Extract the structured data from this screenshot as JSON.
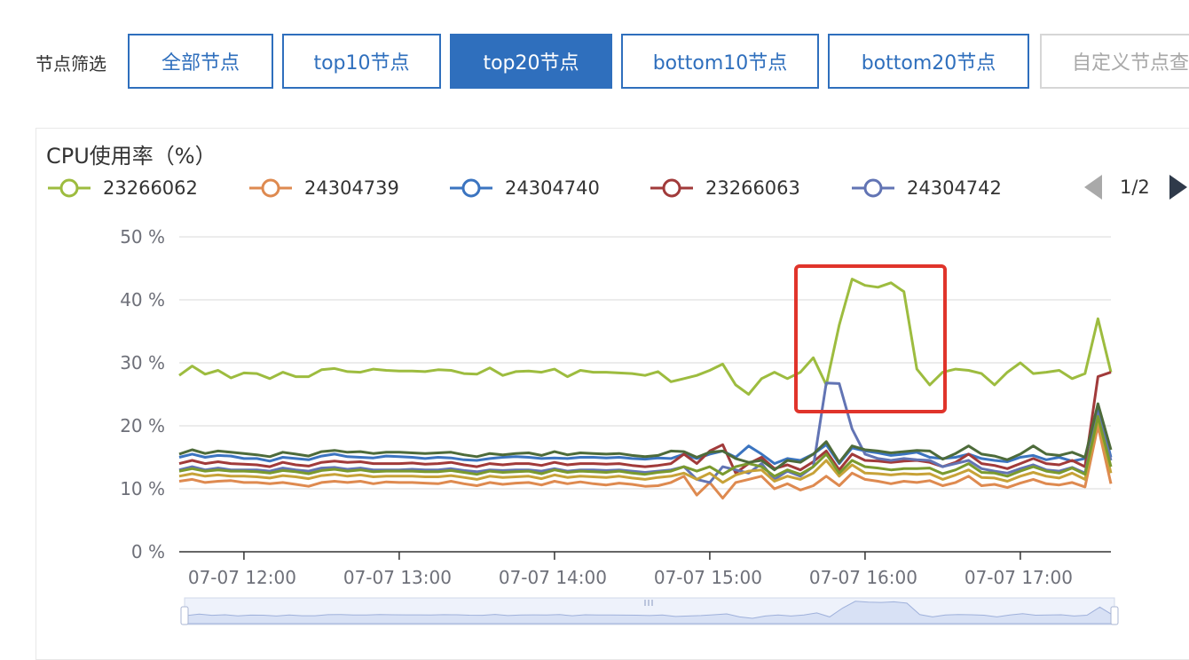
{
  "filter": {
    "label": "节点筛选",
    "buttons": [
      {
        "label": "全部节点",
        "active": false
      },
      {
        "label": "top10节点",
        "active": false
      },
      {
        "label": "top20节点",
        "active": true
      },
      {
        "label": "bottom10节点",
        "active": false
      },
      {
        "label": "bottom20节点",
        "active": false
      },
      {
        "label": "自定义节点查",
        "active": false,
        "disabled": true
      }
    ]
  },
  "pager": {
    "text": "1/2"
  },
  "colors": {
    "accent": "#2f6fbd",
    "highlight_box": "#e0342b",
    "grid": "#e6e6e6",
    "slider_fill": "#d8e1f5"
  },
  "chart_data": {
    "type": "line",
    "title": "CPU使用率（%）",
    "xlabel": "",
    "ylabel": "",
    "ylim": [
      0,
      50
    ],
    "yticks": [
      "0 %",
      "10 %",
      "20 %",
      "30 %",
      "40 %",
      "50 %"
    ],
    "xticks": [
      {
        "label": "07-07 12:00",
        "t": 12.0
      },
      {
        "label": "07-07 13:00",
        "t": 13.0
      },
      {
        "label": "07-07 14:00",
        "t": 14.0
      },
      {
        "label": "07-07 15:00",
        "t": 15.0
      },
      {
        "label": "07-07 16:00",
        "t": 16.0
      },
      {
        "label": "07-07 17:00",
        "t": 17.0
      }
    ],
    "x_start": "07-07 11:35",
    "x_end": "07-07 17:35",
    "x_step_minutes": 5,
    "legend": [
      {
        "name": "23266062",
        "color": "#9dbc3f"
      },
      {
        "name": "24304739",
        "color": "#de8a50"
      },
      {
        "name": "24304740",
        "color": "#3b74c0"
      },
      {
        "name": "23266063",
        "color": "#a13a3a"
      },
      {
        "name": "24304742",
        "color": "#6274b4"
      }
    ],
    "series": [
      {
        "name": "23266062",
        "color": "#9dbc3f",
        "values": [
          28,
          29.5,
          28.2,
          28.8,
          27.6,
          28.4,
          28.3,
          27.5,
          28.5,
          27.8,
          27.8,
          28.9,
          29.1,
          28.6,
          28.5,
          29,
          28.8,
          28.7,
          28.7,
          28.6,
          28.9,
          28.8,
          28.3,
          28.2,
          29.2,
          28,
          28.6,
          28.7,
          28.5,
          29,
          27.8,
          28.8,
          28.5,
          28.5,
          28.4,
          28.3,
          28,
          28.6,
          27,
          27.5,
          28,
          28.8,
          29.8,
          26.5,
          25,
          27.5,
          28.5,
          27.5,
          28.5,
          30.8,
          26.5,
          36,
          43.3,
          42.3,
          42,
          42.7,
          41.3,
          29,
          26.5,
          28.5,
          29,
          28.8,
          28.3,
          26.5,
          28.5,
          30,
          28.3,
          28.5,
          28.8,
          27.5,
          28.3,
          37,
          28.5
        ]
      },
      {
        "name": "24304739",
        "color": "#de8a50",
        "values": [
          11.2,
          11.5,
          11,
          11.2,
          11.3,
          11,
          11,
          10.8,
          11,
          10.7,
          10.4,
          11,
          11.2,
          11,
          11.2,
          10.8,
          11.1,
          11,
          11,
          10.9,
          10.8,
          11.2,
          10.8,
          10.5,
          11,
          10.7,
          10.9,
          11,
          10.6,
          11.2,
          10.8,
          11.1,
          10.8,
          10.6,
          10.9,
          10.7,
          10.4,
          10.5,
          11,
          12,
          9,
          11,
          8.5,
          11,
          11.5,
          12,
          10,
          10.8,
          9.8,
          10.5,
          12,
          10.5,
          12.5,
          11.5,
          11.2,
          10.8,
          11.2,
          11,
          11.3,
          10.5,
          11,
          12,
          10.5,
          10.7,
          10.2,
          10.9,
          11.5,
          10.8,
          10.6,
          11,
          10.3,
          20,
          10.8
        ]
      },
      {
        "name": "24304740",
        "color": "#3b74c0",
        "values": [
          15,
          15.5,
          15,
          15.3,
          15.2,
          14.8,
          14.8,
          14.4,
          15,
          14.8,
          14.6,
          15.2,
          15.5,
          15.1,
          15,
          14.9,
          15.2,
          15.1,
          15,
          14.8,
          15,
          14.9,
          14.6,
          14.5,
          14.8,
          15,
          15.1,
          15,
          14.8,
          14.9,
          14.8,
          15,
          15,
          14.9,
          15,
          14.8,
          14.7,
          14.9,
          14.8,
          15.5,
          14.8,
          15.5,
          16,
          15,
          16.8,
          15.5,
          14,
          14.8,
          14.5,
          15.5,
          17,
          14,
          16.5,
          16,
          15.7,
          15.3,
          15.5,
          15.8,
          15,
          14.8,
          15,
          15.5,
          14.8,
          14.5,
          14.3,
          15,
          15.3,
          14.6,
          15,
          14.4,
          14.8,
          23,
          15
        ]
      },
      {
        "name": "23266063",
        "color": "#a13a3a",
        "values": [
          14,
          14.5,
          14,
          14.3,
          14,
          13.9,
          13.8,
          13.5,
          14.2,
          13.8,
          13.6,
          14.2,
          14.4,
          14.2,
          14.3,
          14,
          14,
          14,
          14.1,
          13.9,
          14,
          14.2,
          13.8,
          13.5,
          14,
          13.8,
          14,
          14,
          13.7,
          14.2,
          13.8,
          14,
          14,
          13.9,
          14,
          13.7,
          13.5,
          13.7,
          14,
          15.5,
          14,
          16,
          17,
          12.5,
          14,
          15,
          13.2,
          13.8,
          13,
          14.3,
          16,
          13,
          15.5,
          14.5,
          14.4,
          14.2,
          14.4,
          14.5,
          14.2,
          13.5,
          14.2,
          15.5,
          14,
          13.7,
          13.2,
          14,
          14.8,
          14,
          13.8,
          14.5,
          13.5,
          27.8,
          28.5
        ]
      },
      {
        "name": "24304742",
        "color": "#6274b4",
        "values": [
          13,
          13.5,
          13,
          13.3,
          13,
          13,
          13,
          12.8,
          13.3,
          13,
          12.8,
          13.3,
          13.4,
          13.1,
          13.3,
          13,
          13,
          13,
          13.1,
          13,
          13,
          13.2,
          12.9,
          12.7,
          13,
          12.9,
          13,
          13,
          12.8,
          13.2,
          12.8,
          13,
          13,
          12.9,
          13,
          12.8,
          12.6,
          12.8,
          13,
          13.5,
          11.5,
          11,
          13.5,
          13,
          12.5,
          14,
          11.5,
          12.8,
          12,
          13.5,
          26.8,
          26.7,
          19.5,
          15.5,
          14.8,
          14.5,
          14.8,
          14.6,
          14.5,
          13.5,
          14,
          14.5,
          13.2,
          12.8,
          12.5,
          13.2,
          13.8,
          13,
          12.8,
          13.4,
          12.5,
          22,
          14.5
        ]
      },
      {
        "name": "",
        "color": "#c7a238",
        "values": [
          12,
          12.4,
          12,
          12.2,
          12,
          12,
          11.9,
          11.7,
          12.1,
          11.9,
          11.6,
          12.1,
          12.3,
          12,
          12.2,
          11.9,
          12,
          12,
          12,
          11.9,
          11.9,
          12.1,
          11.8,
          11.5,
          12,
          11.8,
          11.9,
          12,
          11.6,
          12.2,
          11.8,
          12,
          11.9,
          11.8,
          12,
          11.7,
          11.5,
          11.8,
          12,
          12.5,
          11.5,
          12.5,
          11,
          12.2,
          12.8,
          13,
          11.2,
          12,
          11.5,
          12.5,
          14.5,
          12,
          13.8,
          12.5,
          12.4,
          12.2,
          12.4,
          12.3,
          12.4,
          11.5,
          12.2,
          13,
          11.8,
          11.7,
          11.2,
          12,
          12.6,
          12,
          11.7,
          12.5,
          11.5,
          21,
          12.5
        ]
      },
      {
        "name": "",
        "color": "#7a9a2e",
        "values": [
          12.8,
          13.2,
          12.8,
          13,
          12.8,
          12.8,
          12.7,
          12.5,
          12.9,
          12.7,
          12.4,
          12.9,
          13.1,
          12.8,
          13,
          12.7,
          12.8,
          12.8,
          12.8,
          12.7,
          12.7,
          12.9,
          12.6,
          12.3,
          12.8,
          12.6,
          12.7,
          12.8,
          12.4,
          13,
          12.6,
          12.8,
          12.7,
          12.6,
          12.8,
          12.5,
          12.3,
          12.6,
          12.8,
          13.5,
          12.8,
          13.5,
          12.3,
          13.5,
          14,
          13.5,
          12,
          13,
          12.3,
          13.5,
          15.5,
          12.5,
          14.5,
          13.5,
          13.3,
          13,
          13.2,
          13.2,
          13.3,
          12.4,
          13,
          14,
          12.6,
          12.5,
          12,
          12.8,
          13.5,
          12.8,
          12.5,
          13.3,
          12.3,
          21.5,
          13.5
        ]
      },
      {
        "name": "",
        "color": "#4d6b3a",
        "values": [
          15.5,
          16.2,
          15.6,
          16,
          15.8,
          15.6,
          15.4,
          15.1,
          15.8,
          15.5,
          15.2,
          15.9,
          16.1,
          15.8,
          15.9,
          15.6,
          15.8,
          15.8,
          15.7,
          15.6,
          15.7,
          15.8,
          15.4,
          15.1,
          15.6,
          15.4,
          15.6,
          15.7,
          15.3,
          15.9,
          15.4,
          15.7,
          15.6,
          15.5,
          15.6,
          15.3,
          15.1,
          15.3,
          16,
          15.9,
          15,
          15.8,
          16,
          14.8,
          14.2,
          14.5,
          13,
          14.5,
          14.2,
          15.5,
          17.5,
          14.2,
          16.8,
          16.2,
          16,
          15.7,
          15.9,
          16.1,
          16,
          14.7,
          15.6,
          16.8,
          15.5,
          15.2,
          14.6,
          15.5,
          16.8,
          15.5,
          15.3,
          15.8,
          15,
          23.5,
          16.2
        ]
      }
    ]
  }
}
